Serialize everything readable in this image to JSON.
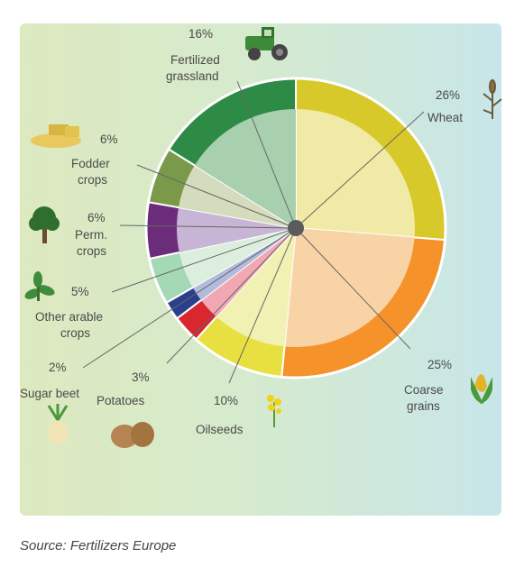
{
  "chart_data": {
    "type": "pie",
    "slices": [
      {
        "name": "Wheat",
        "value": 26,
        "label": "26%",
        "color": "#d8c92a",
        "inner": "#f1eaa7"
      },
      {
        "name": "Coarse grains",
        "value": 25,
        "label": "25%",
        "color": "#f5922a",
        "inner": "#f8d3a6"
      },
      {
        "name": "Oilseeds",
        "value": 10,
        "label": "10%",
        "color": "#e7e040",
        "inner": "#f2f1b4"
      },
      {
        "name": "Potatoes",
        "value": 3,
        "label": "3%",
        "color": "#d9272e",
        "inner": "#f2a8b3"
      },
      {
        "name": "Sugar beet",
        "value": 2,
        "label": "2%",
        "color": "#2b3f8c",
        "inner": "#b3bbdc"
      },
      {
        "name": "Other arable crops",
        "value": 5,
        "label": "5%",
        "color": "#a5d8b4",
        "inner": "#dcefdf"
      },
      {
        "name": "Perm. crops",
        "value": 6,
        "label": "6%",
        "color": "#6b2d79",
        "inner": "#c8b5d5"
      },
      {
        "name": "Fodder crops",
        "value": 6,
        "label": "6%",
        "color": "#7a9a4a",
        "inner": "#d5dcbd"
      },
      {
        "name": "Fertilized grassland",
        "value": 16,
        "label": "16%",
        "color": "#2e8b45",
        "inner": "#a8cfae"
      }
    ]
  },
  "labels": {
    "wheat": {
      "pct": "26%",
      "name": "Wheat"
    },
    "coarse": {
      "pct": "25%",
      "name1": "Coarse",
      "name2": "grains"
    },
    "oilseeds": {
      "pct": "10%",
      "name": "Oilseeds"
    },
    "potatoes": {
      "pct": "3%",
      "name": "Potatoes"
    },
    "sugar": {
      "pct": "2%",
      "name": "Sugar beet"
    },
    "other": {
      "pct": "5%",
      "name1": "Other arable",
      "name2": "crops"
    },
    "perm": {
      "pct": "6%",
      "name1": "Perm.",
      "name2": "crops"
    },
    "fodder": {
      "pct": "6%",
      "name1": "Fodder",
      "name2": "crops"
    },
    "grass": {
      "pct": "16%",
      "name1": "Fertilized",
      "name2": "grassland"
    }
  },
  "icons": [
    "tractor-icon",
    "wheat-icon",
    "hay-icon",
    "tree-icon",
    "plant-icon",
    "corn-icon",
    "rapeseed-icon",
    "potato-icon",
    "sugar-beet-icon"
  ],
  "source": "Source: Fertilizers Europe"
}
